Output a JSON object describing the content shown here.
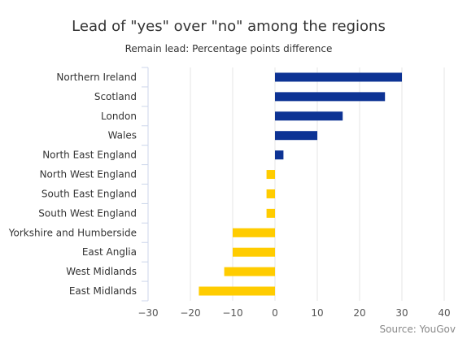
{
  "chart_data": {
    "type": "bar",
    "orientation": "horizontal",
    "title": "Lead of \"yes\" over \"no\" among the regions",
    "subtitle": "Remain lead: Percentage points difference",
    "categories": [
      "Northern Ireland",
      "Scotland",
      "London",
      "Wales",
      "North East England",
      "North West England",
      "South East England",
      "South West England",
      "Yorkshire and Humberside",
      "East Anglia",
      "West Midlands",
      "East Midlands"
    ],
    "values": [
      30,
      26,
      16,
      10,
      2,
      -2,
      -2,
      -2,
      -10,
      -10,
      -12,
      -18
    ],
    "xlim": [
      -30,
      40
    ],
    "xticks": [
      -30,
      -20,
      -10,
      0,
      10,
      20,
      30,
      40
    ],
    "xtick_labels": [
      "−30",
      "−20",
      "−10",
      "0",
      "10",
      "20",
      "30",
      "40"
    ],
    "grid": true,
    "colors": {
      "positive": "#0d3394",
      "negative": "#ffcc00",
      "grid": "#e6e6e6",
      "axis": "#ccd6eb"
    },
    "credit": "Source: YouGov"
  }
}
